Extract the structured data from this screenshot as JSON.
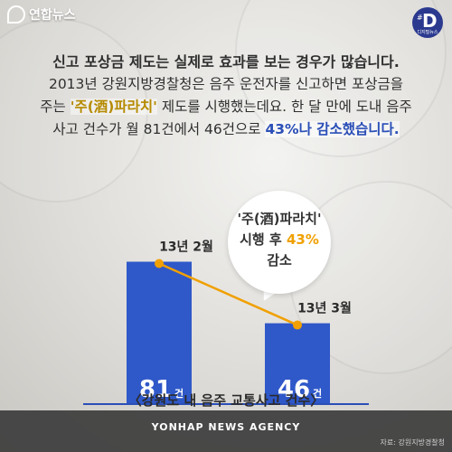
{
  "brand": {
    "name": "연합뉴스"
  },
  "badge": {
    "hash": "#",
    "letter": "D",
    "sub": "디지털뉴스"
  },
  "text": {
    "line1": "신고 포상금 제도는 실제로 효과를 보는 경우가 많습니다.",
    "line2": "2013년 강원지방경찰청은 음주 운전자를 신고하면 포상금을",
    "line3_pre": "주는 ",
    "line3_hl": "'주(酒)파라치'",
    "line3_post": " 제도를 시행했는데요. 한 달 만에 도내 음주",
    "line4_pre": "사고 건수가 월 81건에서 46건으로 ",
    "line4_hl": "43%나 감소했습니다."
  },
  "bubble": {
    "line1": "'주(酒)파라치'",
    "line2_pre": "시행 후 ",
    "line2_accent": "43%",
    "line3": "감소"
  },
  "chart_data": {
    "type": "bar",
    "categories": [
      "13년 2월",
      "13년 3월"
    ],
    "values": [
      81,
      46
    ],
    "unit": "건",
    "title": "〈강원도 내 음주 교통사고 건수〉",
    "ylim": [
      0,
      90
    ],
    "annotation": "'주(酒)파라치' 시행 후 43% 감소"
  },
  "colors": {
    "bar": "#2f58c9",
    "trend_line": "#f0a000",
    "baseline": "#2b4fb7"
  },
  "footer": {
    "logo": "YONHAP NEWS AGENCY",
    "source": "자료: 강원지방경찰청"
  }
}
